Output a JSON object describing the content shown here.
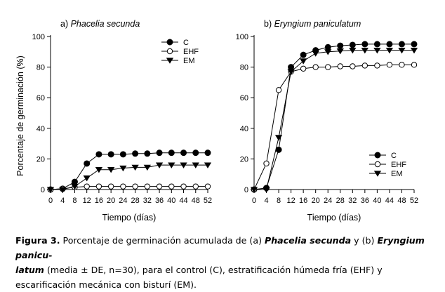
{
  "chart_data": [
    {
      "type": "line",
      "title_prefix": "a)",
      "title_species": "Phacelia secunda",
      "xlabel": "Tiempo (días)",
      "ylabel": "Porcentaje de germinación (%)",
      "x": [
        0,
        4,
        8,
        12,
        16,
        20,
        24,
        28,
        32,
        36,
        40,
        44,
        48,
        52
      ],
      "xticks": [
        "0",
        "4",
        "8",
        "12",
        "16",
        "20",
        "24",
        "28",
        "32",
        "36",
        "40",
        "44",
        "48",
        "52"
      ],
      "yticks": [
        "0",
        "20",
        "40",
        "60",
        "80",
        "100"
      ],
      "xlim": [
        0,
        52
      ],
      "ylim": [
        0,
        100
      ],
      "legend_position": "top-right",
      "series": [
        {
          "name": "C",
          "marker": "filled-circle",
          "values": [
            0,
            0.5,
            5,
            17,
            23,
            23,
            23,
            23.5,
            23.5,
            24,
            24,
            24,
            24,
            24
          ]
        },
        {
          "name": "EHF",
          "marker": "open-circle",
          "values": [
            0,
            0.5,
            1.5,
            2,
            2,
            2,
            2,
            2,
            2,
            2,
            2,
            2,
            2,
            2
          ]
        },
        {
          "name": "EM",
          "marker": "filled-triangle-down",
          "values": [
            0,
            0,
            2,
            7.5,
            13,
            13,
            14,
            14.5,
            14.5,
            16,
            16,
            16,
            16,
            16
          ]
        }
      ]
    },
    {
      "type": "line",
      "title_prefix": "b)",
      "title_species": "Eryngium paniculatum",
      "xlabel": "Tiempo (días)",
      "ylabel": "",
      "x": [
        0,
        4,
        8,
        12,
        16,
        20,
        24,
        28,
        32,
        36,
        40,
        44,
        48,
        52
      ],
      "xticks": [
        "0",
        "4",
        "8",
        "12",
        "16",
        "20",
        "24",
        "28",
        "32",
        "36",
        "40",
        "44",
        "48",
        "52"
      ],
      "yticks": [
        "0",
        "20",
        "40",
        "60",
        "80",
        "100"
      ],
      "xlim": [
        0,
        52
      ],
      "ylim": [
        0,
        100
      ],
      "legend_position": "bottom-right",
      "series": [
        {
          "name": "C",
          "marker": "filled-circle",
          "values": [
            0,
            1,
            26,
            80,
            88,
            91,
            93,
            94,
            94.5,
            95,
            95,
            95,
            95,
            95
          ]
        },
        {
          "name": "EHF",
          "marker": "open-circle",
          "values": [
            0,
            17,
            65,
            77,
            79,
            80,
            80,
            80.5,
            80.5,
            81,
            81,
            81.5,
            81.5,
            81.5
          ]
        },
        {
          "name": "EM",
          "marker": "filled-triangle-down",
          "values": [
            0,
            0,
            34,
            77,
            84,
            89,
            90,
            90.5,
            91,
            91,
            91,
            91,
            91,
            91
          ]
        }
      ]
    }
  ],
  "caption": {
    "label": "Figura 3.",
    "part1": " Porcentaje de germinación acumulada de (a) ",
    "species_a": "Phacelia secunda",
    "part2": " y (b) ",
    "species_b": "Eryngium panicu-\nlatum",
    "part3": " (media ± DE, n=30), para el control (C), estratificación húmeda fría (EHF) y escarificación mecánica con bisturí (EM)."
  },
  "colors": {
    "ink": "#000000",
    "background": "#ffffff"
  }
}
